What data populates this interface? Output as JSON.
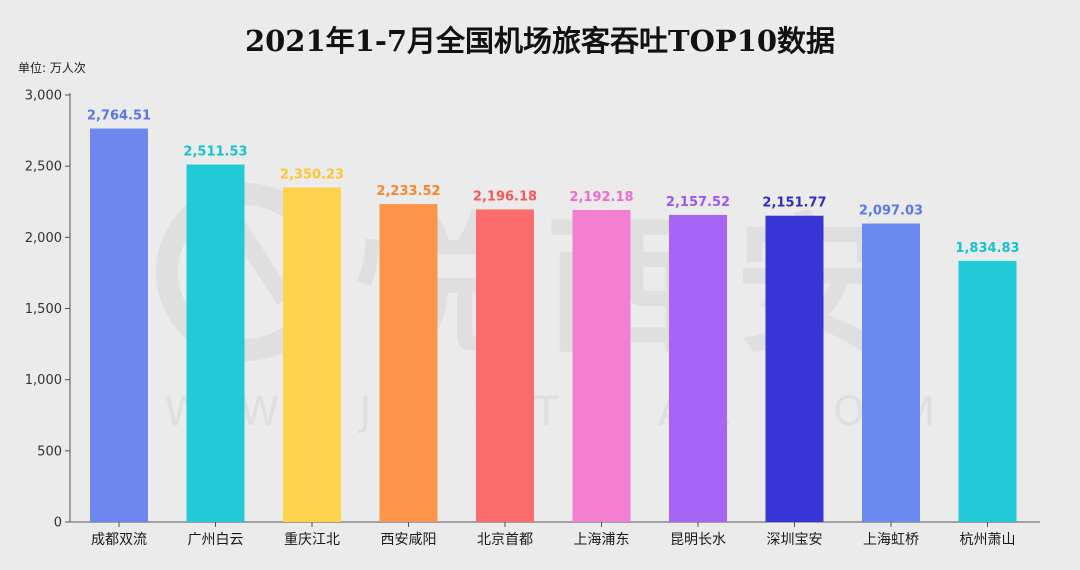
{
  "chart_data": {
    "type": "bar",
    "title": "2021年1-7月全国机场旅客吞吐TOP10数据",
    "unit_label": "单位: 万人次",
    "categories": [
      "成都双流",
      "广州白云",
      "重庆江北",
      "西安咸阳",
      "北京首都",
      "上海浦东",
      "昆明长水",
      "深圳宝安",
      "上海虹桥",
      "杭州萧山"
    ],
    "values": [
      2764.51,
      2511.53,
      2350.23,
      2233.52,
      2196.18,
      2192.18,
      2157.52,
      2151.77,
      2097.03,
      1834.83
    ],
    "value_labels": [
      "2,764.51",
      "2,511.53",
      "2,350.23",
      "2,233.52",
      "2,196.18",
      "2,192.18",
      "2,157.52",
      "2,151.77",
      "2,097.03",
      "1,834.83"
    ],
    "bar_colors": [
      "#6d86f0",
      "#22c9d6",
      "#fdd24d",
      "#fc944a",
      "#fd6c6c",
      "#f47fd0",
      "#a765f6",
      "#3735d6",
      "#6a8af0",
      "#22c9d6"
    ],
    "label_colors": [
      "#5a76ee",
      "#16c2d0",
      "#fcc630",
      "#fa8430",
      "#fb5555",
      "#f06ccb",
      "#9d59f4",
      "#2f2cc9",
      "#5a78ee",
      "#16c2d0"
    ],
    "ylim": [
      0,
      3000
    ],
    "yticks": [
      0,
      500,
      1000,
      1500,
      2000,
      2500,
      3000
    ],
    "ytick_labels": [
      "0",
      "500",
      "1,000",
      "1,500",
      "2,000",
      "2,500",
      "3,000"
    ],
    "grid": false,
    "legend": "none"
  },
  "watermark": {
    "brand_text": "悦西安",
    "url_text": "WWW.JUSTXA.COM",
    "logo_icon": "yuexian-logo-icon"
  }
}
